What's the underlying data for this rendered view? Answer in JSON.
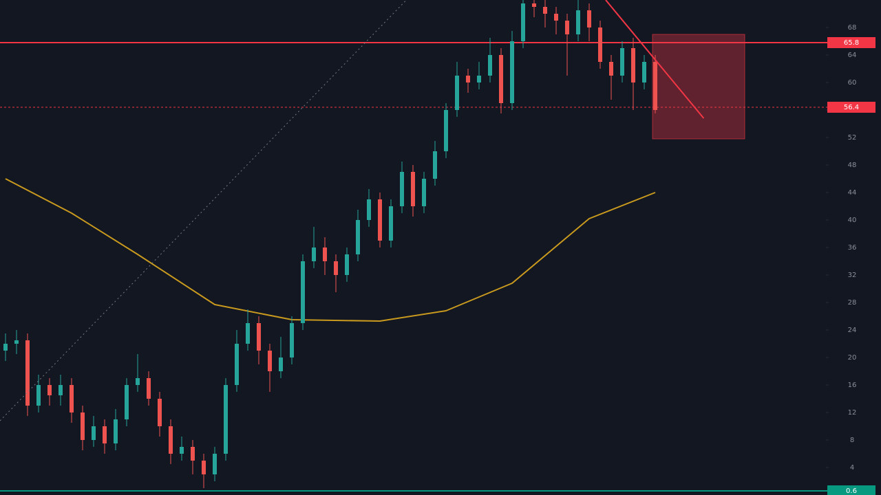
{
  "chart_data": {
    "type": "candlestick",
    "background": "#131722",
    "up_color": "#26a69a",
    "down_color": "#ef5350",
    "xlim": [
      -0.5,
      74.5
    ],
    "ylim": [
      0,
      72
    ],
    "yticks": [
      4,
      8,
      12,
      16,
      20,
      24,
      28,
      32,
      36,
      40,
      44,
      48,
      52,
      56,
      60,
      64,
      68
    ],
    "open": [
      21.0,
      22.0,
      22.5,
      13.0,
      16.0,
      14.5,
      16.0,
      12.0,
      8.0,
      10.0,
      7.5,
      11.0,
      16.0,
      17.0,
      14.0,
      10.0,
      6.0,
      7.0,
      5.0,
      3.0,
      6.0,
      16.0,
      22.0,
      25.0,
      21.0,
      18.0,
      20.0,
      25.0,
      34.0,
      36.0,
      34.0,
      32.0,
      35.0,
      40.0,
      43.0,
      37.0,
      42.0,
      47.0,
      42.0,
      46.0,
      50.0,
      56.0,
      61.0,
      60.0,
      61.0,
      64.0,
      57.0,
      66.0,
      71.5,
      71.0,
      70.0,
      69.0,
      67.0,
      70.5,
      68.0,
      63.0,
      61.0,
      65.0,
      60.0,
      63.0
    ],
    "high": [
      23.5,
      24,
      23.5,
      17.5,
      17,
      17.5,
      17,
      13,
      11.5,
      11,
      12.5,
      17,
      20.5,
      18,
      15,
      11,
      8.5,
      8,
      6,
      7,
      17,
      24,
      27,
      26,
      22,
      23,
      26,
      35,
      39,
      37.5,
      35,
      36,
      41.5,
      44.5,
      44,
      43,
      48.5,
      48,
      47,
      51.5,
      57,
      63,
      62,
      63,
      66.5,
      65,
      67.5,
      73,
      73,
      72.5,
      71,
      70,
      72,
      71.5,
      69,
      64,
      66,
      66.5,
      64,
      64
    ],
    "low": [
      19.5,
      20.5,
      11.5,
      12,
      13,
      13,
      10.5,
      6.5,
      7,
      6,
      6.5,
      10,
      15,
      13,
      8.5,
      4.5,
      5,
      3,
      1,
      2,
      5,
      15,
      21,
      19,
      15,
      17,
      19,
      24,
      33,
      32,
      29.5,
      31,
      34,
      39,
      36,
      36,
      41,
      40.5,
      41,
      45,
      49,
      55,
      58.5,
      59,
      60,
      55.5,
      56,
      65,
      69.5,
      68,
      67,
      61,
      66,
      66,
      62,
      57.5,
      60,
      56,
      59,
      55.5
    ],
    "close": [
      22.0,
      22.5,
      13.0,
      16.0,
      14.5,
      16.0,
      12.0,
      8.0,
      10.0,
      7.5,
      11.0,
      16.0,
      17.0,
      14.0,
      10.0,
      6.0,
      7.0,
      5.0,
      3.0,
      6.0,
      16.0,
      22.0,
      25.0,
      21.0,
      18.0,
      20.0,
      25.0,
      34.0,
      36.0,
      34.0,
      32.0,
      35.0,
      40.0,
      43.0,
      37.0,
      42.0,
      47.0,
      42.0,
      46.0,
      50.0,
      56.0,
      61.0,
      60.0,
      61.0,
      64.0,
      57.0,
      66.0,
      71.5,
      71.0,
      70.0,
      69.0,
      67.0,
      70.5,
      68.0,
      63.0,
      61.0,
      65.0,
      60.0,
      63.0,
      56.0
    ],
    "moving_average": {
      "color": "#c99a1e",
      "x": [
        0,
        6,
        12,
        19,
        26,
        34,
        40,
        46,
        53,
        59
      ],
      "values": [
        46,
        41,
        35,
        27.7,
        25.5,
        25.3,
        26.8,
        30.8,
        40.2,
        44
      ]
    },
    "price_lines": [
      {
        "value": 65.8,
        "color": "#f23645",
        "style": "solid"
      },
      {
        "value": 56.4,
        "color": "#f23645",
        "style": "dashed"
      },
      {
        "value": 0.6,
        "color": "#089981",
        "style": "solid"
      }
    ],
    "zone": {
      "x": [
        58.75,
        67.125
      ],
      "y": [
        51.8,
        67
      ],
      "color": "#f23645"
    },
    "trendlines": [
      {
        "x": [
          54.5,
          63.4
        ],
        "y": [
          72,
          54.8
        ],
        "color": "#f23645",
        "style": "solid"
      },
      {
        "x": [
          -0.5,
          36.4
        ],
        "y": [
          10.8,
          72
        ],
        "color": "#787b86",
        "style": "dotted"
      }
    ]
  }
}
